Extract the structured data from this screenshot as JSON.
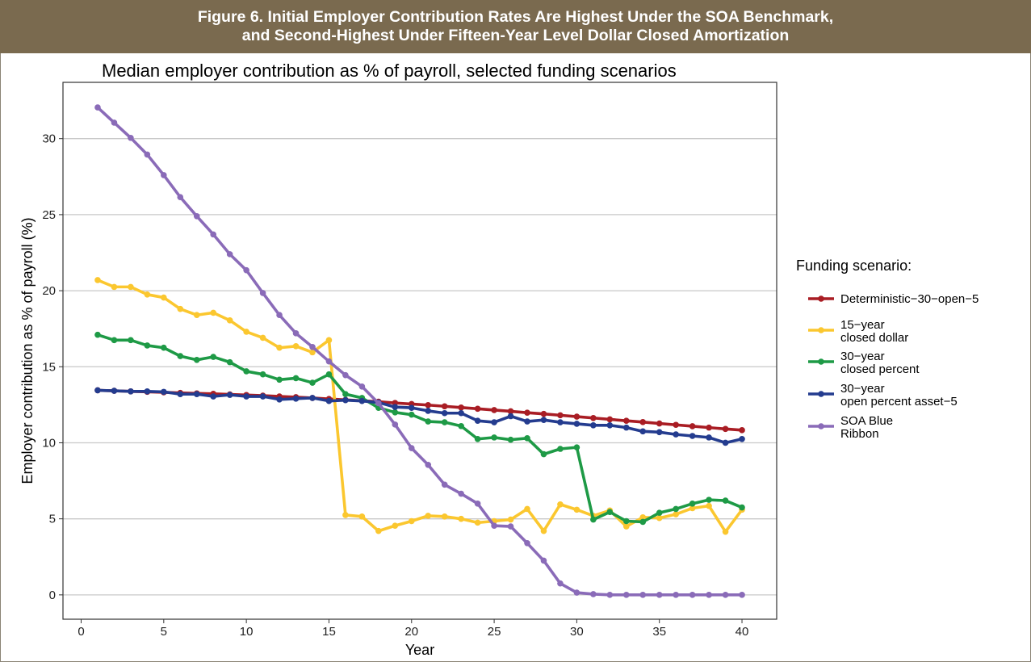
{
  "banner": {
    "line1": "Figure 6. Initial Employer Contribution Rates Are Highest Under the SOA Benchmark,",
    "line2": "and Second-Highest Under Fifteen-Year Level Dollar Closed Amortization"
  },
  "chart_data": {
    "type": "line",
    "title": "Median employer contribution as % of payroll, selected funding scenarios",
    "xlabel": "Year",
    "ylabel": "Employer contribution as % of payroll (%)",
    "xlim": [
      -1.1,
      42.1
    ],
    "ylim": [
      -1.6,
      33.7
    ],
    "xticks": [
      0,
      5,
      10,
      15,
      20,
      25,
      30,
      35,
      40
    ],
    "yticks": [
      0,
      5,
      10,
      15,
      20,
      25,
      30
    ],
    "grid": "horizontal",
    "legend_title": "Funding scenario:",
    "legend_position": "right",
    "x": [
      1,
      2,
      3,
      4,
      5,
      6,
      7,
      8,
      9,
      10,
      11,
      12,
      13,
      14,
      15,
      16,
      17,
      18,
      19,
      20,
      21,
      22,
      23,
      24,
      25,
      26,
      27,
      28,
      29,
      30,
      31,
      32,
      33,
      34,
      35,
      36,
      37,
      38,
      39,
      40
    ],
    "series": [
      {
        "name": "Deterministic−30−open−5",
        "color": "#a91d24",
        "values": [
          13.45,
          13.42,
          13.38,
          13.35,
          13.32,
          13.28,
          13.25,
          13.22,
          13.18,
          13.14,
          13.1,
          13.05,
          13.0,
          12.95,
          12.88,
          12.82,
          12.76,
          12.7,
          12.62,
          12.55,
          12.48,
          12.4,
          12.32,
          12.24,
          12.15,
          12.07,
          11.98,
          11.9,
          11.81,
          11.72,
          11.63,
          11.54,
          11.45,
          11.36,
          11.27,
          11.18,
          11.09,
          11.0,
          10.91,
          10.83
        ]
      },
      {
        "name": "15−year\nclosed dollar",
        "color": "#fbc72f",
        "values": [
          20.7,
          20.25,
          20.25,
          19.75,
          19.55,
          18.8,
          18.4,
          18.55,
          18.05,
          17.3,
          16.9,
          16.25,
          16.35,
          15.95,
          16.75,
          5.25,
          5.15,
          4.2,
          4.55,
          4.85,
          5.2,
          5.15,
          5.0,
          4.75,
          4.85,
          4.95,
          5.65,
          4.2,
          5.95,
          5.6,
          5.2,
          5.55,
          4.5,
          5.1,
          5.05,
          5.3,
          5.7,
          5.85,
          4.15,
          5.6
        ]
      },
      {
        "name": "30−year\nclosed percent",
        "color": "#1e9a46",
        "values": [
          17.1,
          16.75,
          16.75,
          16.4,
          16.25,
          15.7,
          15.45,
          15.65,
          15.3,
          14.7,
          14.5,
          14.15,
          14.25,
          13.95,
          14.5,
          13.2,
          12.95,
          12.3,
          12.0,
          11.85,
          11.4,
          11.35,
          11.1,
          10.25,
          10.35,
          10.2,
          10.3,
          9.25,
          9.6,
          9.7,
          4.95,
          5.45,
          4.85,
          4.8,
          5.4,
          5.65,
          6.0,
          6.25,
          6.2,
          5.75
        ]
      },
      {
        "name": "30−year\nopen percent asset−5",
        "color": "#243c8f",
        "values": [
          13.45,
          13.42,
          13.38,
          13.38,
          13.35,
          13.2,
          13.2,
          13.05,
          13.15,
          13.05,
          13.05,
          12.85,
          12.9,
          12.95,
          12.75,
          12.8,
          12.75,
          12.65,
          12.35,
          12.3,
          12.1,
          11.95,
          11.95,
          11.45,
          11.35,
          11.75,
          11.4,
          11.5,
          11.35,
          11.25,
          11.15,
          11.15,
          11.0,
          10.75,
          10.7,
          10.55,
          10.45,
          10.35,
          10.0,
          10.25
        ]
      },
      {
        "name": "SOA Blue\nRibbon",
        "color": "#8a6bb8",
        "values": [
          32.05,
          31.05,
          30.05,
          28.95,
          27.6,
          26.15,
          24.9,
          23.7,
          22.4,
          21.35,
          19.85,
          18.4,
          17.2,
          16.3,
          15.35,
          14.45,
          13.7,
          12.6,
          11.2,
          9.65,
          8.55,
          7.25,
          6.65,
          6.0,
          4.55,
          4.5,
          3.4,
          2.25,
          0.75,
          0.15,
          0.05,
          0.0,
          0.0,
          0.0,
          0.0,
          0.0,
          0.0,
          0.0,
          0.0,
          0.0
        ]
      }
    ]
  }
}
